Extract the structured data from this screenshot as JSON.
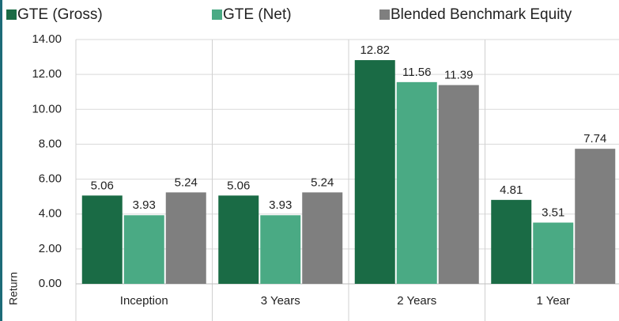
{
  "chart_data": {
    "type": "bar",
    "y_label": "Return",
    "categories": [
      "Inception",
      "3 Years",
      "2 Years",
      "1 Year"
    ],
    "series": [
      {
        "name": "GTE (Gross)",
        "color": "#1a6b45",
        "values": [
          5.06,
          5.06,
          12.82,
          4.81
        ]
      },
      {
        "name": "GTE (Net)",
        "color": "#4aaa84",
        "values": [
          3.93,
          3.93,
          11.56,
          3.51
        ]
      },
      {
        "name": "Blended Benchmark Equity",
        "color": "#7f7f7f",
        "values": [
          5.24,
          5.24,
          11.39,
          7.74
        ]
      }
    ],
    "ylim": [
      0,
      14
    ],
    "yticks": [
      {
        "value": 0,
        "label": "0.00"
      },
      {
        "value": 2,
        "label": "2.00"
      },
      {
        "value": 4,
        "label": "4.00"
      },
      {
        "value": 6,
        "label": "6.00"
      },
      {
        "value": 8,
        "label": "8.00"
      },
      {
        "value": 10,
        "label": "10.00"
      },
      {
        "value": 12,
        "label": "12.00"
      },
      {
        "value": 14,
        "label": "14.00"
      }
    ],
    "grid": true,
    "legend": "top"
  }
}
